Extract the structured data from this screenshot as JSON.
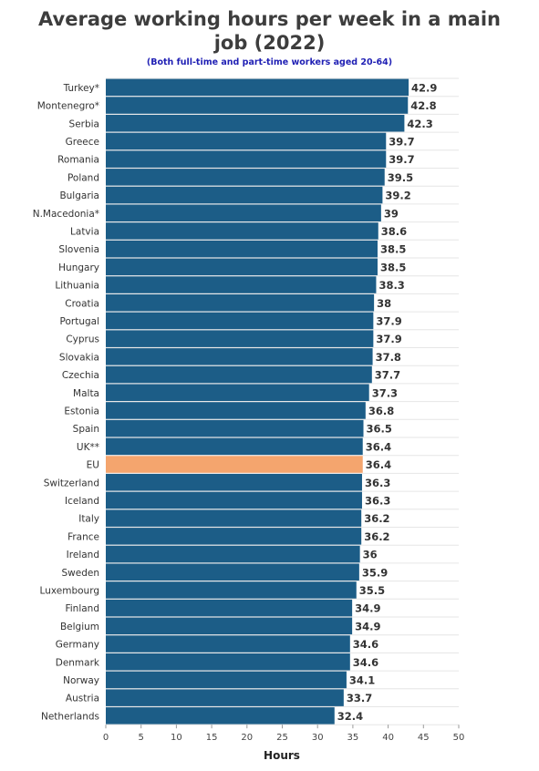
{
  "chart_data": {
    "type": "bar",
    "orientation": "horizontal",
    "title": "Average working hours per week in a main job (2022)",
    "title_lines": [
      "Average working hours per week in a main",
      "job (2022)"
    ],
    "subtitle": "(Both full-time and part-time workers aged 20-64)",
    "xlabel": "Hours",
    "ylabel": "",
    "xlim": [
      0,
      50
    ],
    "x_ticks": [
      0,
      5,
      10,
      15,
      20,
      25,
      30,
      35,
      40,
      45,
      50
    ],
    "grid": true,
    "legend": "none",
    "categories": [
      "Turkey*",
      "Montenegro*",
      "Serbia",
      "Greece",
      "Romania",
      "Poland",
      "Bulgaria",
      "N.Macedonia*",
      "Latvia",
      "Slovenia",
      "Hungary",
      "Lithuania",
      "Croatia",
      "Portugal",
      "Cyprus",
      "Slovakia",
      "Czechia",
      "Malta",
      "Estonia",
      "Spain",
      "UK**",
      "EU",
      "Switzerland",
      "Iceland",
      "Italy",
      "France",
      "Ireland",
      "Sweden",
      "Luxembourg",
      "Finland",
      "Belgium",
      "Germany",
      "Denmark",
      "Norway",
      "Austria",
      "Netherlands"
    ],
    "values": [
      42.9,
      42.8,
      42.3,
      39.7,
      39.7,
      39.5,
      39.2,
      39,
      38.6,
      38.5,
      38.5,
      38.3,
      38,
      37.9,
      37.9,
      37.8,
      37.7,
      37.3,
      36.8,
      36.5,
      36.4,
      36.4,
      36.3,
      36.3,
      36.2,
      36.2,
      36,
      35.9,
      35.5,
      34.9,
      34.9,
      34.6,
      34.6,
      34.1,
      33.7,
      32.4
    ],
    "value_labels": [
      "42.9",
      "42.8",
      "42.3",
      "39.7",
      "39.7",
      "39.5",
      "39.2",
      "39",
      "38.6",
      "38.5",
      "38.5",
      "38.3",
      "38",
      "37.9",
      "37.9",
      "37.8",
      "37.7",
      "37.3",
      "36.8",
      "36.5",
      "36.4",
      "36.4",
      "36.3",
      "36.3",
      "36.2",
      "36.2",
      "36",
      "35.9",
      "35.5",
      "34.9",
      "34.9",
      "34.6",
      "34.6",
      "34.1",
      "33.7",
      "32.4"
    ],
    "highlight_category": "EU",
    "colors": {
      "bar": "#1c5d87",
      "highlight": "#f4a56e",
      "grid": "#e6e6e6"
    }
  }
}
